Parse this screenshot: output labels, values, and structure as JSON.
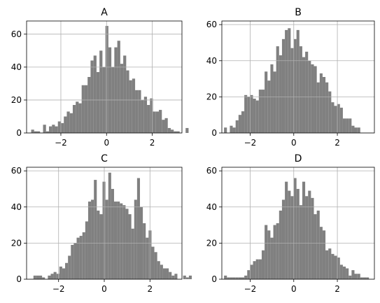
{
  "figure": {
    "background": "#ffffff",
    "bar_color": "#808080",
    "grid_color": "#b0b0b0",
    "axes_color": "#000000"
  },
  "chart_data": [
    {
      "type": "bar",
      "title": "A",
      "grid": true,
      "bins": {
        "start": -3.3,
        "width": 0.13
      },
      "values": [
        2,
        1,
        1,
        0,
        5,
        1,
        4,
        5,
        4,
        7,
        6,
        10,
        13,
        12,
        17,
        19,
        18,
        29,
        29,
        34,
        44,
        47,
        37,
        50,
        40,
        65,
        52,
        40,
        52,
        56,
        42,
        47,
        38,
        32,
        33,
        26,
        26,
        20,
        22,
        17,
        21,
        13,
        13,
        14,
        8,
        9,
        3,
        2,
        1,
        1,
        0,
        0,
        3
      ],
      "xlim": [
        -3.5,
        3.3
      ],
      "ylim": [
        0,
        68
      ],
      "xticks": [
        -2,
        0,
        2
      ],
      "xtick_labels": [
        "−2",
        "0",
        "2"
      ],
      "yticks": [
        0,
        20,
        40,
        60
      ],
      "ytick_labels": [
        "0",
        "20",
        "40",
        "60"
      ]
    },
    {
      "type": "bar",
      "title": "B",
      "grid": true,
      "bins": {
        "start": -3.2,
        "width": 0.133
      },
      "values": [
        3,
        0,
        4,
        3,
        7,
        10,
        12,
        21,
        20,
        21,
        19,
        18,
        24,
        24,
        34,
        29,
        38,
        34,
        48,
        43,
        52,
        57,
        58,
        47,
        52,
        57,
        48,
        42,
        45,
        40,
        38,
        37,
        28,
        33,
        31,
        28,
        23,
        17,
        15,
        16,
        14,
        8,
        8,
        8,
        4,
        3,
        3,
        0,
        0,
        0,
        0,
        0,
        0,
        0,
        1
      ],
      "xlim": [
        -3.3,
        3.7
      ],
      "ylim": [
        0,
        62
      ],
      "xticks": [
        -2,
        0,
        2
      ],
      "xtick_labels": [
        "−2",
        "0",
        "2"
      ],
      "yticks": [
        0,
        20,
        40,
        60
      ],
      "ytick_labels": [
        "0",
        "20",
        "40",
        "60"
      ]
    },
    {
      "type": "bar",
      "title": "C",
      "grid": true,
      "bins": {
        "start": -3.1,
        "width": 0.126
      },
      "values": [
        2,
        2,
        2,
        1,
        0,
        2,
        3,
        4,
        3,
        7,
        6,
        9,
        13,
        19,
        20,
        23,
        24,
        26,
        32,
        43,
        44,
        55,
        38,
        36,
        54,
        44,
        59,
        50,
        43,
        43,
        42,
        41,
        39,
        36,
        28,
        44,
        56,
        40,
        31,
        23,
        27,
        18,
        15,
        10,
        8,
        6,
        6,
        4,
        2,
        3,
        0,
        0,
        2,
        1,
        2
      ],
      "xlim": [
        -3.4,
        3.4
      ],
      "ylim": [
        0,
        62
      ],
      "xticks": [
        -2,
        0,
        2
      ],
      "xtick_labels": [
        "−2",
        "0",
        "2"
      ],
      "yticks": [
        0,
        20,
        40,
        60
      ],
      "ytick_labels": [
        "0",
        "20",
        "40",
        "60"
      ]
    },
    {
      "type": "bar",
      "title": "D",
      "grid": true,
      "bins": {
        "start": -3.2,
        "width": 0.133
      },
      "values": [
        2,
        1,
        1,
        1,
        1,
        1,
        1,
        2,
        5,
        8,
        10,
        11,
        11,
        16,
        30,
        27,
        23,
        30,
        31,
        38,
        44,
        54,
        49,
        46,
        56,
        50,
        41,
        54,
        46,
        49,
        45,
        36,
        38,
        29,
        27,
        16,
        17,
        14,
        13,
        12,
        8,
        7,
        6,
        2,
        5,
        3,
        3,
        1,
        1,
        1,
        0,
        0,
        0,
        0,
        1
      ],
      "xlim": [
        -3.3,
        3.7
      ],
      "ylim": [
        0,
        62
      ],
      "xticks": [
        -2,
        0,
        2
      ],
      "xtick_labels": [
        "−2",
        "0",
        "2"
      ],
      "yticks": [
        0,
        20,
        40,
        60
      ],
      "ytick_labels": [
        "0",
        "20",
        "40",
        "60"
      ]
    }
  ]
}
